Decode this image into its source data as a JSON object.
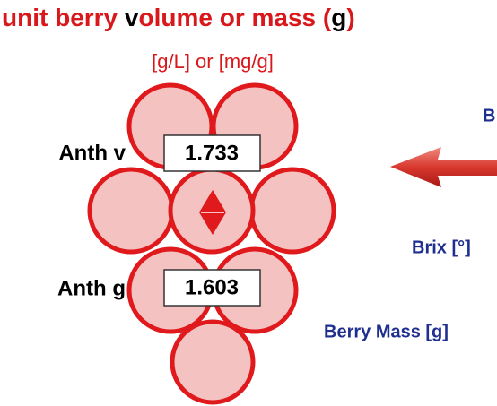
{
  "header": {
    "title": [
      "unit berry ",
      "v",
      "olume or mass (",
      "g",
      ")"
    ],
    "subtitle": "[g/L] or [mg/g]"
  },
  "fields": [
    {
      "label": "Anth v",
      "value": 1.733
    },
    {
      "label": "Anth g",
      "value": 1.603
    }
  ],
  "right_labels": [
    "B",
    "Brix [°]",
    "Berry Mass [g]"
  ]
}
